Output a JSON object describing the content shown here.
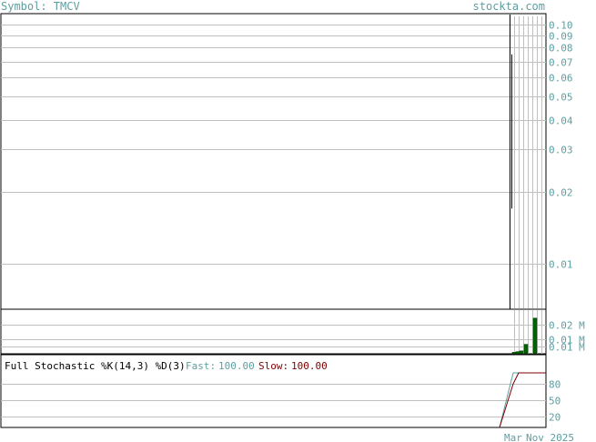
{
  "header": {
    "symbol_label": "Symbol: TMCV",
    "site": "stockta.com"
  },
  "chart_data": [
    {
      "type": "line",
      "panel": "price",
      "scale": "log",
      "ylim": [
        0.0065,
        0.11
      ],
      "y_ticks": [
        "0.10",
        "0.09",
        "0.08",
        "0.07",
        "0.06",
        "0.05",
        "0.04",
        "0.03",
        "0.02",
        "0.01"
      ],
      "y_tick_values": [
        0.1,
        0.09,
        0.08,
        0.07,
        0.06,
        0.05,
        0.04,
        0.03,
        0.02,
        0.01
      ],
      "series": [
        {
          "values": [
            0.075,
            0.017
          ]
        }
      ]
    },
    {
      "type": "bar",
      "panel": "volume",
      "ylim": [
        0,
        0.03
      ],
      "y_ticks": [
        "0.02 M",
        "0.01 M",
        "0.01 M"
      ],
      "y_tick_values": [
        0.02,
        0.01,
        0.005
      ],
      "values": [
        0.001,
        0.0015,
        0.002,
        0.0065,
        0.0245
      ]
    },
    {
      "type": "line",
      "panel": "stochastic",
      "title": "Full Stochastic %K(14,3) %D(3)",
      "fast_label": "Fast:",
      "fast_value": "100.00",
      "slow_label": "Slow:",
      "slow_value": "100.00",
      "ylim": [
        0,
        100
      ],
      "y_ticks": [
        "80",
        "50",
        "20"
      ],
      "y_tick_values": [
        80,
        50,
        20
      ],
      "x_label": "Mar",
      "x_label_2": "Nov 2025",
      "series": [
        {
          "name": "Fast",
          "values": [
            0,
            100,
            100,
            100
          ],
          "color": "#5f9ea0"
        },
        {
          "name": "Slow",
          "values": [
            0,
            80,
            100,
            100
          ],
          "color": "#800000"
        }
      ]
    }
  ],
  "colors": {
    "label": "#5f9ea0",
    "volume": "#006400",
    "slow": "#800000",
    "grid": "#c0c0c0"
  }
}
